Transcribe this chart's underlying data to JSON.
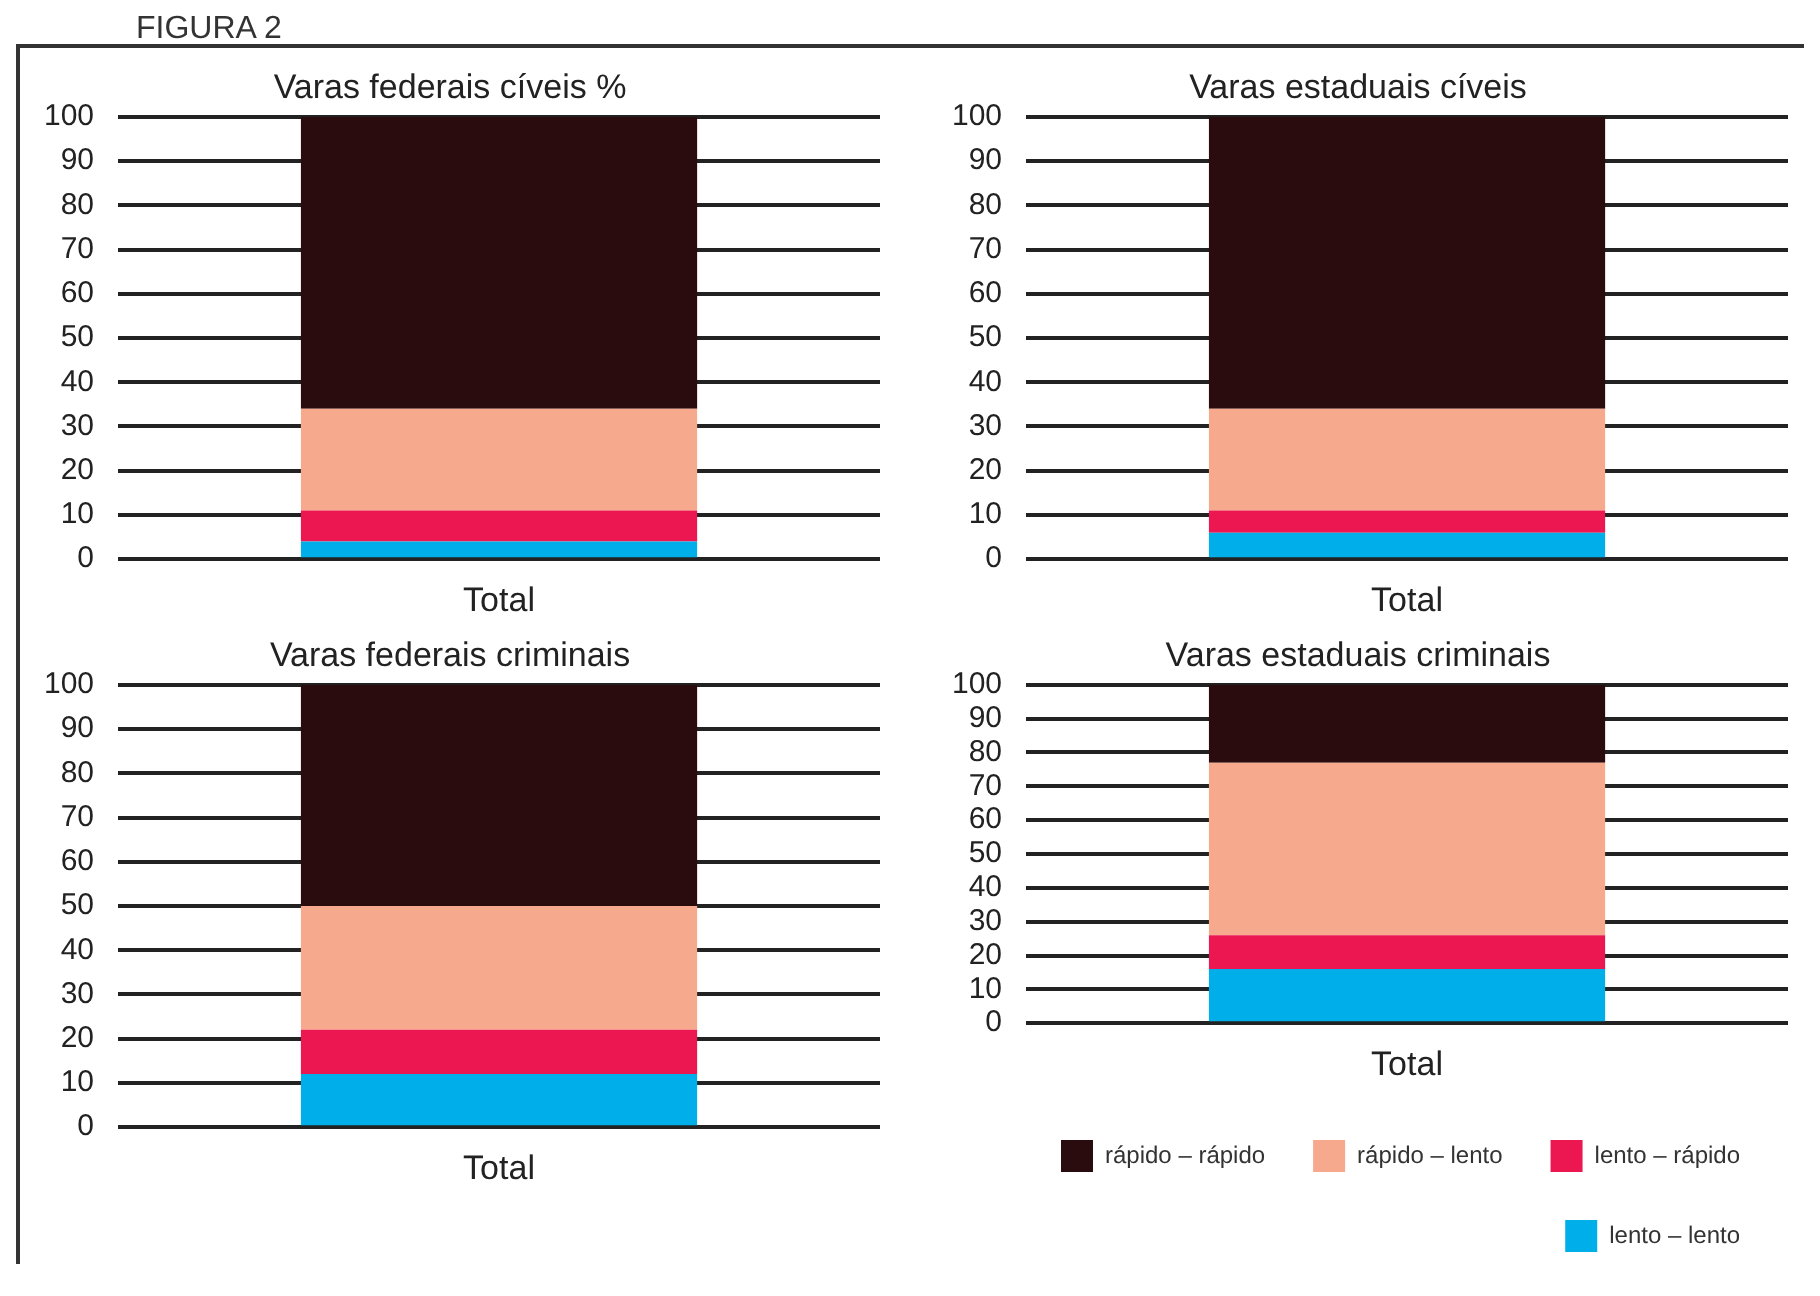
{
  "chart_data": [
    {
      "type": "bar",
      "title": "Varas federais cíveis %",
      "annotations": [
        "FIGURA 2"
      ],
      "categories": [
        "Total"
      ],
      "stacked": true,
      "ylim": [
        0,
        100
      ],
      "yticks": [
        0,
        10,
        20,
        30,
        40,
        50,
        60,
        70,
        80,
        90,
        100
      ],
      "grid": "y",
      "series": [
        {
          "color": "#00aeea",
          "values": [
            4
          ]
        },
        {
          "color": "#ec1650",
          "values": [
            7
          ]
        },
        {
          "color": "#f6a98c",
          "values": [
            23
          ]
        },
        {
          "color": "#2a0c0e",
          "values": [
            66
          ]
        }
      ]
    },
    {
      "type": "bar",
      "title": "Varas estaduais cíveis",
      "categories": [
        "Total"
      ],
      "stacked": true,
      "ylim": [
        0,
        100
      ],
      "yticks": [
        0,
        10,
        20,
        30,
        40,
        50,
        60,
        70,
        80,
        90,
        100
      ],
      "grid": "y",
      "series": [
        {
          "color": "#00aeea",
          "values": [
            6
          ]
        },
        {
          "color": "#ec1650",
          "values": [
            5
          ]
        },
        {
          "color": "#f6a98c",
          "values": [
            23
          ]
        },
        {
          "color": "#2a0c0e",
          "values": [
            66
          ]
        }
      ]
    },
    {
      "type": "bar",
      "title": "Varas federais criminais",
      "categories": [
        "Total"
      ],
      "stacked": true,
      "ylim": [
        0,
        100
      ],
      "yticks": [
        0,
        10,
        20,
        30,
        40,
        50,
        60,
        70,
        80,
        90,
        100
      ],
      "grid": "y",
      "series": [
        {
          "color": "#00aeea",
          "values": [
            12
          ]
        },
        {
          "color": "#ec1650",
          "values": [
            10
          ]
        },
        {
          "color": "#f6a98c",
          "values": [
            28
          ]
        },
        {
          "color": "#2a0c0e",
          "values": [
            50
          ]
        }
      ]
    },
    {
      "type": "bar",
      "title": "Varas estaduais criminais",
      "categories": [
        "Total"
      ],
      "stacked": true,
      "ylim": [
        0,
        100
      ],
      "yticks": [
        0,
        10,
        20,
        30,
        40,
        50,
        60,
        70,
        80,
        90,
        100
      ],
      "grid": "y",
      "legend": "bottom right",
      "series": [
        {
          "name": "lento – lento",
          "color": "#00aeea",
          "values": [
            16
          ]
        },
        {
          "name": "lento – rápido",
          "color": "#ec1650",
          "values": [
            10
          ]
        },
        {
          "name": "rápido – lento",
          "color": "#f6a98c",
          "values": [
            51
          ]
        },
        {
          "name": "rápido – rápido",
          "color": "#2a0c0e",
          "values": [
            23
          ]
        }
      ]
    }
  ]
}
